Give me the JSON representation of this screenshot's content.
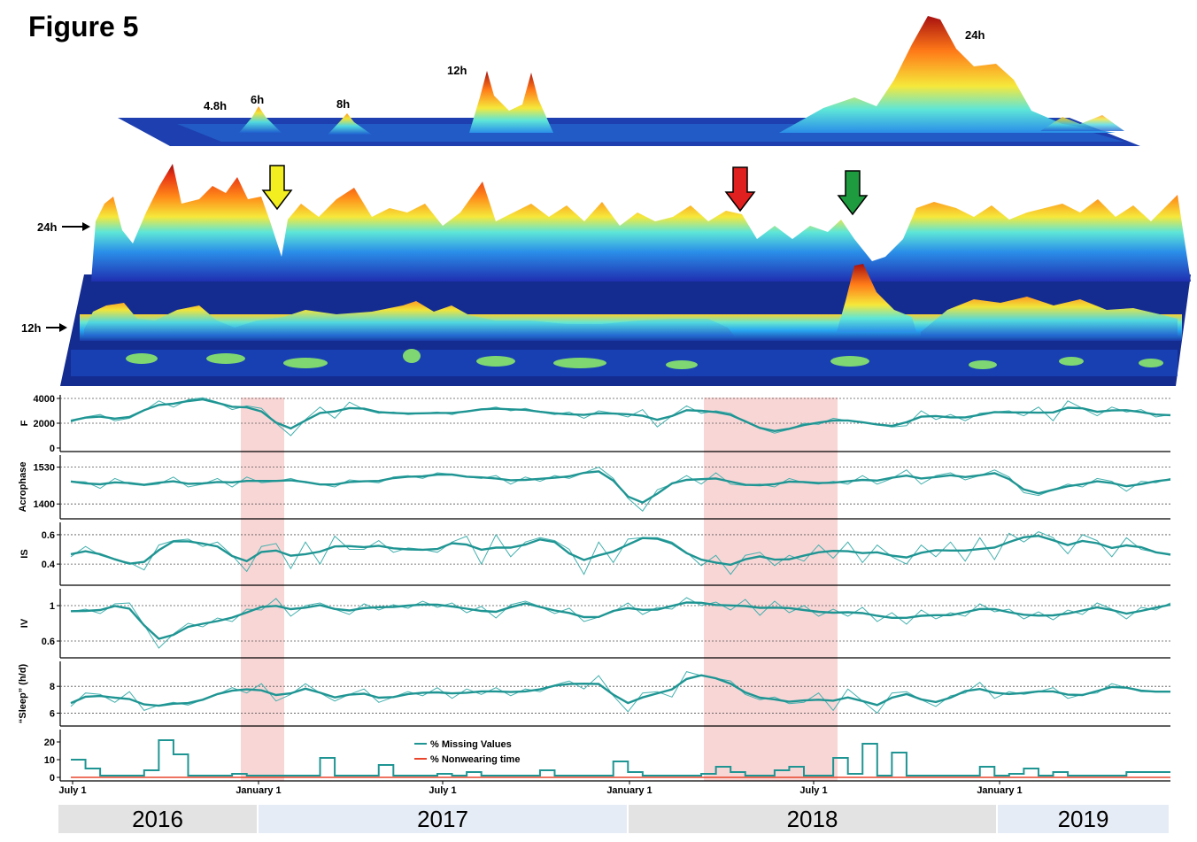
{
  "figure_title": "Figure 5",
  "colors": {
    "line": "#1f9593",
    "line_raw": "#43b0ae",
    "nonwearing": "#e8452c",
    "highlight": "#f6c4c4",
    "arrow_yellow": "#f2ee1f",
    "arrow_red": "#e0201f",
    "arrow_green": "#1e9a3f",
    "year_gray": "#e3e3e3",
    "year_blue": "#e6ecf6"
  },
  "periodogram_3d": {
    "period_labels": [
      "4.8h",
      "6h",
      "8h",
      "12h",
      "24h"
    ]
  },
  "heatmap_2d": {
    "y_labels": [
      "24h",
      "12h"
    ],
    "arrows": [
      "yellow-arrow",
      "red-arrow",
      "green-arrow"
    ]
  },
  "x_axis": {
    "tick_labels": [
      "July 1",
      "January 1",
      "July 1",
      "January 1",
      "July 1",
      "January 1"
    ]
  },
  "years": [
    "2016",
    "2017",
    "2018",
    "2019"
  ],
  "chart_data": [
    {
      "type": "line",
      "ylabel": "F",
      "yticks": [
        0,
        2000,
        4000
      ],
      "ylim": [
        0,
        4000
      ],
      "gridlines": [
        2000,
        4000
      ],
      "series": [
        {
          "values": [
            2100,
            2500,
            2700,
            2200,
            2400,
            3000,
            3800,
            3300,
            3900,
            4050,
            3700,
            3100,
            3400,
            3200,
            2000,
            1000,
            2300,
            3300,
            2400,
            3700,
            3100,
            2800,
            2900,
            2700,
            2800,
            2900,
            2700,
            3000,
            3100,
            3300,
            3000,
            3200,
            2900,
            2700,
            2900,
            2400,
            3000,
            2800,
            2500,
            3100,
            1700,
            2600,
            3400,
            2800,
            3000,
            2800,
            2100,
            1600,
            1200,
            1500,
            2000,
            1900,
            2400,
            2200,
            2100,
            1900,
            1700,
            1800,
            3000,
            2300,
            2700,
            2200,
            2800,
            2900,
            3000,
            2600,
            3300,
            2200,
            3800,
            3200,
            2600,
            3300,
            2900,
            3100,
            2500,
            2700
          ]
        }
      ]
    },
    {
      "type": "line",
      "ylabel": "Acrophase",
      "yticks": [
        1400,
        1530
      ],
      "ylim": [
        1360,
        1560
      ],
      "gridlines": [
        1400,
        1530
      ],
      "series": [
        {
          "values": [
            1480,
            1478,
            1455,
            1490,
            1470,
            1465,
            1470,
            1495,
            1460,
            1470,
            1490,
            1460,
            1495,
            1475,
            1480,
            1490,
            1475,
            1470,
            1460,
            1485,
            1480,
            1475,
            1495,
            1500,
            1490,
            1510,
            1505,
            1495,
            1490,
            1500,
            1470,
            1495,
            1480,
            1500,
            1490,
            1510,
            1530,
            1490,
            1420,
            1375,
            1450,
            1470,
            1500,
            1470,
            1510,
            1470,
            1465,
            1470,
            1460,
            1490,
            1475,
            1470,
            1480,
            1470,
            1500,
            1470,
            1490,
            1520,
            1470,
            1500,
            1510,
            1485,
            1500,
            1520,
            1495,
            1440,
            1430,
            1450,
            1470,
            1460,
            1490,
            1480,
            1445,
            1480,
            1475,
            1490
          ]
        }
      ]
    },
    {
      "type": "line",
      "ylabel": "IS",
      "yticks": [
        0.4,
        0.6
      ],
      "ylim": [
        0.28,
        0.66
      ],
      "gridlines": [
        0.4,
        0.6
      ],
      "series": [
        {
          "values": [
            0.45,
            0.52,
            0.46,
            0.43,
            0.41,
            0.36,
            0.53,
            0.56,
            0.57,
            0.52,
            0.55,
            0.46,
            0.35,
            0.52,
            0.54,
            0.37,
            0.55,
            0.4,
            0.59,
            0.5,
            0.5,
            0.56,
            0.48,
            0.51,
            0.5,
            0.48,
            0.55,
            0.59,
            0.4,
            0.6,
            0.45,
            0.55,
            0.58,
            0.56,
            0.5,
            0.33,
            0.55,
            0.41,
            0.57,
            0.58,
            0.58,
            0.55,
            0.48,
            0.39,
            0.46,
            0.33,
            0.46,
            0.48,
            0.39,
            0.46,
            0.42,
            0.53,
            0.44,
            0.55,
            0.41,
            0.53,
            0.45,
            0.4,
            0.53,
            0.45,
            0.55,
            0.42,
            0.58,
            0.43,
            0.61,
            0.55,
            0.62,
            0.58,
            0.47,
            0.6,
            0.56,
            0.45,
            0.58,
            0.5,
            0.48,
            0.46
          ]
        }
      ]
    },
    {
      "type": "line",
      "ylabel": "IV",
      "yticks": [
        0.6,
        1.0
      ],
      "ylim": [
        0.45,
        1.15
      ],
      "gridlines": [
        0.6,
        1.0
      ],
      "series": [
        {
          "values": [
            0.93,
            0.96,
            0.91,
            1.02,
            1.03,
            0.78,
            0.52,
            0.68,
            0.8,
            0.76,
            0.86,
            0.82,
            0.96,
            0.95,
            1.08,
            0.88,
            1.0,
            1.03,
            0.96,
            0.9,
            1.02,
            0.95,
            1.01,
            0.97,
            1.05,
            0.98,
            1.03,
            0.92,
            0.99,
            0.86,
            1.01,
            1.05,
            0.99,
            0.91,
            0.97,
            0.82,
            0.87,
            0.93,
            1.03,
            0.9,
            0.98,
            0.96,
            1.09,
            1.0,
            1.04,
            0.95,
            1.07,
            0.89,
            1.05,
            0.92,
            1.0,
            0.88,
            0.96,
            0.88,
            0.98,
            0.82,
            0.92,
            0.79,
            0.95,
            0.85,
            0.92,
            0.88,
            1.02,
            0.93,
            0.96,
            0.85,
            0.93,
            0.84,
            0.95,
            0.9,
            1.03,
            0.96,
            0.85,
            0.98,
            0.95,
            1.03
          ]
        }
      ]
    },
    {
      "type": "line",
      "ylabel": "“Sleep” (h/d)",
      "yticks": [
        6,
        8
      ],
      "ylim": [
        5.3,
        9.6
      ],
      "gridlines": [
        6,
        8
      ],
      "series": [
        {
          "values": [
            6.5,
            7.5,
            7.4,
            6.8,
            7.6,
            6.2,
            6.6,
            6.8,
            6.6,
            7.0,
            7.4,
            7.9,
            7.5,
            8.2,
            6.9,
            7.4,
            8.2,
            7.5,
            6.9,
            7.4,
            7.8,
            6.8,
            7.2,
            7.6,
            7.3,
            7.9,
            7.1,
            7.8,
            7.4,
            7.9,
            7.3,
            7.8,
            7.6,
            8.1,
            8.4,
            7.8,
            8.8,
            7.3,
            6.1,
            7.5,
            7.6,
            7.2,
            9.1,
            8.8,
            8.6,
            8.4,
            7.4,
            7.0,
            7.2,
            6.7,
            6.8,
            7.5,
            6.2,
            7.8,
            6.9,
            6.0,
            7.5,
            7.6,
            7.0,
            6.5,
            7.3,
            7.5,
            8.3,
            7.1,
            7.6,
            7.4,
            7.6,
            7.9,
            7.1,
            7.4,
            7.5,
            8.2,
            7.9,
            7.6,
            7.6,
            7.6
          ]
        }
      ]
    },
    {
      "type": "line",
      "yticks": [
        0,
        10,
        20
      ],
      "ylim": [
        0,
        25
      ],
      "legend": [
        "% Missing Values",
        "% Nonwearing time"
      ],
      "series": [
        {
          "name": "% Missing Values",
          "values": [
            10,
            5,
            1,
            1,
            1,
            4,
            21,
            13,
            1,
            1,
            1,
            2,
            1,
            1,
            1,
            1,
            1,
            11,
            1,
            1,
            1,
            7,
            1,
            1,
            1,
            2,
            1,
            3,
            1,
            1,
            1,
            1,
            4,
            1,
            1,
            1,
            1,
            9,
            3,
            1,
            1,
            1,
            1,
            2,
            6,
            3,
            1,
            1,
            4,
            6,
            1,
            1,
            11,
            2,
            19,
            1,
            14,
            1,
            1,
            1,
            1,
            1,
            6,
            1,
            2,
            5,
            1,
            3,
            1,
            1,
            1,
            1,
            3,
            3,
            3,
            3
          ]
        },
        {
          "name": "% Nonwearing time",
          "values": [
            0,
            0,
            0,
            0,
            0,
            0,
            0,
            0,
            0,
            0,
            0,
            0,
            0,
            0,
            0,
            0,
            0,
            0,
            0,
            0,
            0,
            0,
            0,
            0,
            0,
            0,
            0,
            0,
            0,
            0,
            0,
            0,
            0,
            0,
            0,
            0,
            0,
            0,
            0,
            0,
            0,
            0,
            0,
            0,
            0,
            0,
            0,
            0,
            0,
            0,
            0,
            0,
            0,
            0,
            0,
            0,
            0,
            0,
            0,
            0,
            0,
            0,
            0,
            0,
            0,
            0,
            0,
            0,
            0,
            0,
            0,
            0,
            0,
            0,
            0,
            0
          ]
        }
      ]
    }
  ]
}
